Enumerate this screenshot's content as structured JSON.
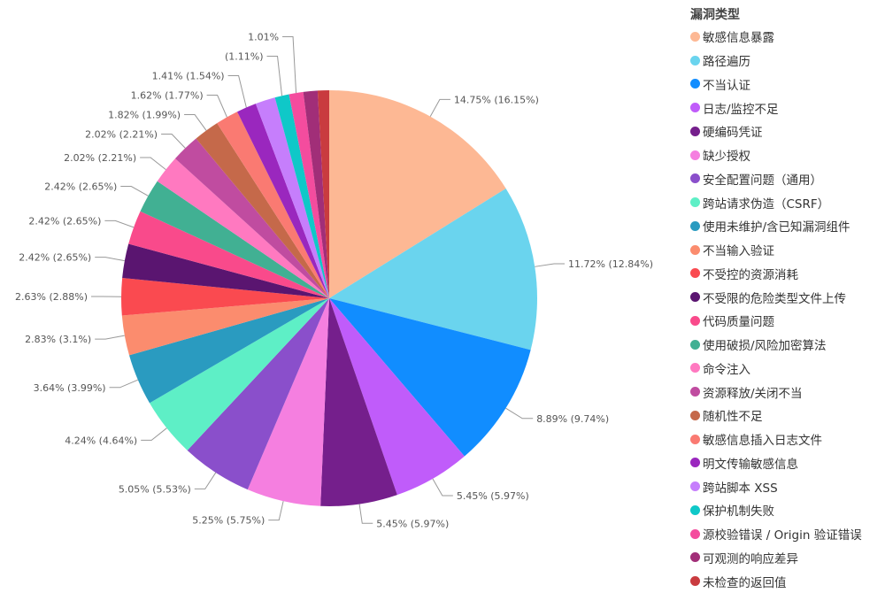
{
  "chart_data": {
    "type": "pie",
    "legend_title": "漏洞类型",
    "legend_position": "right",
    "start_angle": "12 o'clock, clockwise",
    "slices": [
      {
        "name": "敏感信息暴露",
        "value": 14.75,
        "label": "14.75% (16.15%)",
        "color": "#FDB894"
      },
      {
        "name": "路径遍历",
        "value": 11.72,
        "label": "11.72% (12.84%)",
        "color": "#6AD4EE"
      },
      {
        "name": "不当认证",
        "value": 8.89,
        "label": "8.89% (9.74%)",
        "color": "#118DFF"
      },
      {
        "name": "日志/监控不足",
        "value": 5.45,
        "label": "5.45% (5.97%)",
        "color": "#C05CFA"
      },
      {
        "name": "硬编码凭证",
        "value": 5.45,
        "label": "5.45% (5.97%)",
        "color": "#751F8C"
      },
      {
        "name": "缺少授权",
        "value": 5.25,
        "label": "5.25% (5.75%)",
        "color": "#F57FE0"
      },
      {
        "name": "安全配置问题（通用）",
        "value": 5.05,
        "label": "5.05% (5.53%)",
        "color": "#8A4FCB"
      },
      {
        "name": "跨站请求伪造（CSRF）",
        "value": 4.24,
        "label": "4.24% (4.64%)",
        "color": "#5EEFC6"
      },
      {
        "name": "使用未维护/含已知漏洞组件",
        "value": 3.64,
        "label": "3.64% (3.99%)",
        "color": "#2A9BC0"
      },
      {
        "name": "不当输入验证",
        "value": 2.83,
        "label": "2.83% (3.1%)",
        "color": "#FB8C6E"
      },
      {
        "name": "不受控的资源消耗",
        "value": 2.63,
        "label": "2.63% (2.88%)",
        "color": "#FA4A50"
      },
      {
        "name": "不受限的危险类型文件上传",
        "value": 2.42,
        "label": "2.42% (2.65%)",
        "color": "#5A1570"
      },
      {
        "name": "代码质量问题",
        "value": 2.42,
        "label": "2.42% (2.65%)",
        "color": "#F94A8B"
      },
      {
        "name": "使用破损/风险加密算法",
        "value": 2.42,
        "label": "2.42% (2.65%)",
        "color": "#41B093"
      },
      {
        "name": "命令注入",
        "value": 2.02,
        "label": "2.02% (2.21%)",
        "color": "#FF79C0"
      },
      {
        "name": "资源释放/关闭不当",
        "value": 2.02,
        "label": "2.02% (2.21%)",
        "color": "#C04CA0"
      },
      {
        "name": "随机性不足",
        "value": 1.82,
        "label": "1.82% (1.99%)",
        "color": "#C5694A"
      },
      {
        "name": "敏感信息插入日志文件",
        "value": 1.62,
        "label": "1.62% (1.77%)",
        "color": "#FA7A72"
      },
      {
        "name": "明文传输敏感信息",
        "value": 1.41,
        "label": "1.41% (1.54%)",
        "color": "#9A27BE"
      },
      {
        "name": "跨站脚本 XSS",
        "value": 1.41,
        "label": "",
        "color": "#C67EFC"
      },
      {
        "name": "保护机制失败",
        "value": 1.01,
        "label": "(1.11%)",
        "color": "#0FC8C8"
      },
      {
        "name": "源校验错误 / Origin 验证错误",
        "value": 1.01,
        "label": "1.01%",
        "color": "#F44C9E"
      },
      {
        "name": "可观测的响应差异",
        "value": 1.01,
        "label": "",
        "color": "#A12E78"
      },
      {
        "name": "未检查的返回值",
        "value": 0.81,
        "label": "",
        "color": "#C93B3F"
      }
    ]
  }
}
